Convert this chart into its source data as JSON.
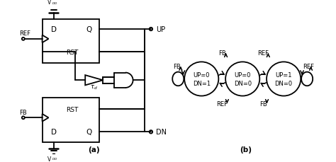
{
  "bg_color": "#ffffff",
  "line_color": "#000000",
  "fig_width": 4.74,
  "fig_height": 2.3,
  "dpi": 100,
  "label_a": "(a)",
  "label_b": "(b)",
  "state1_label_top": "UP=0",
  "state1_label_bot": "DN=1",
  "state2_label_top": "UP=0",
  "state2_label_bot": "DN=0",
  "state3_label_top": "UP=1",
  "state3_label_bot": "DN=0",
  "vdd_label": "V",
  "vdd_sub": "DD",
  "ref_label": "REF",
  "fb_label": "FB",
  "up_label": "UP",
  "dn_label": "DN",
  "tau_label": "τ",
  "tau_sub": "d"
}
